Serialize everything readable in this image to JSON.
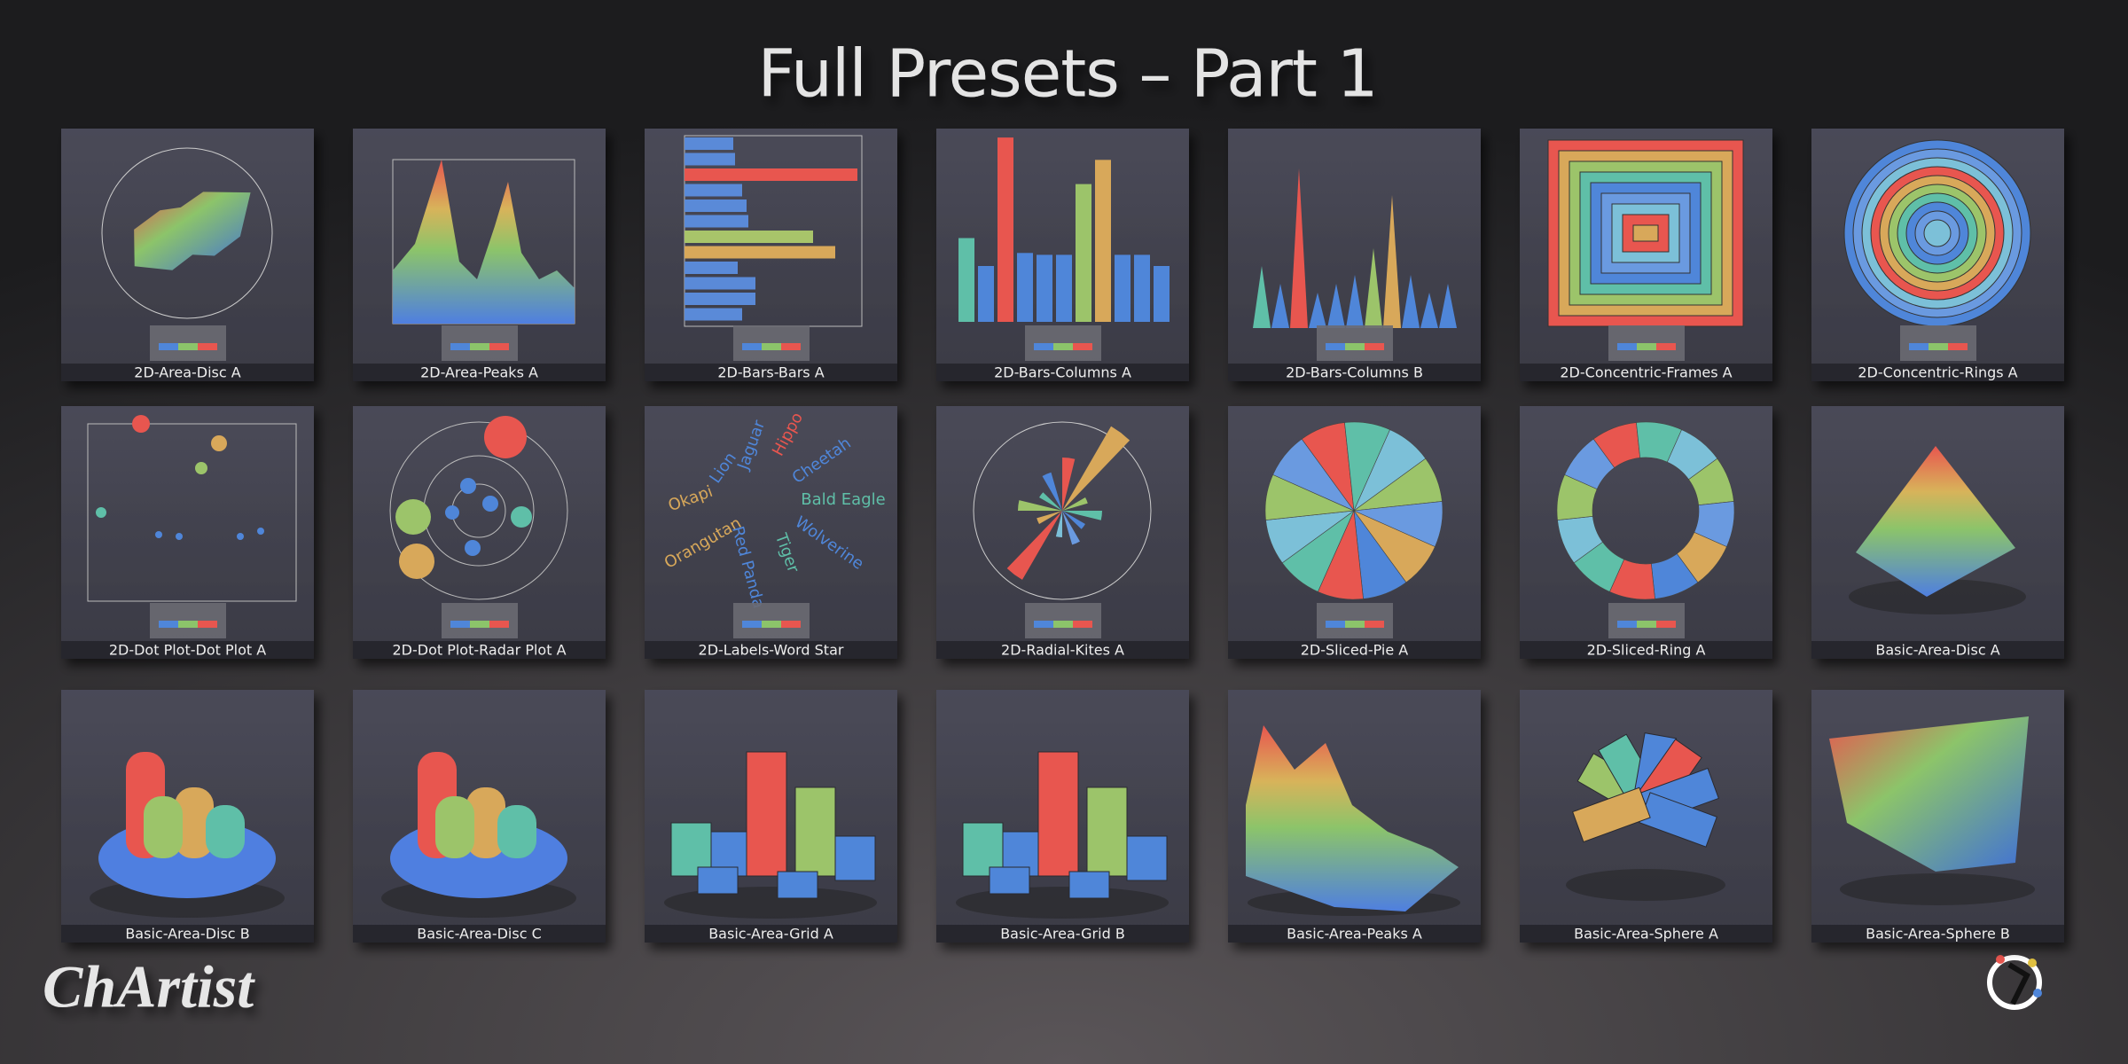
{
  "title": "Full Presets – Part 1",
  "brand": "ChArtist",
  "tiles": [
    {
      "label": "2D-Area-Disc A"
    },
    {
      "label": "2D-Area-Peaks A"
    },
    {
      "label": "2D-Bars-Bars A"
    },
    {
      "label": "2D-Bars-Columns A"
    },
    {
      "label": "2D-Bars-Columns B"
    },
    {
      "label": "2D-Concentric-Frames A"
    },
    {
      "label": "2D-Concentric-Rings A"
    },
    {
      "label": "2D-Dot Plot-Dot Plot A"
    },
    {
      "label": "2D-Dot Plot-Radar Plot A"
    },
    {
      "label": "2D-Labels-Word Star",
      "words": [
        "Hippo",
        "Jaguar",
        "Cheetah",
        "Lion",
        "Okapi",
        "Bald Eagle",
        "Orangutan",
        "Wolverine",
        "Red Panda",
        "Tiger"
      ]
    },
    {
      "label": "2D-Radial-Kites A"
    },
    {
      "label": "2D-Sliced-Pie A"
    },
    {
      "label": "2D-Sliced-Ring A"
    },
    {
      "label": "Basic-Area-Disc A"
    },
    {
      "label": "Basic-Area-Disc B"
    },
    {
      "label": "Basic-Area-Disc C"
    },
    {
      "label": "Basic-Area-Grid A"
    },
    {
      "label": "Basic-Area-Grid B"
    },
    {
      "label": "Basic-Area-Peaks A"
    },
    {
      "label": "Basic-Area-Sphere A"
    },
    {
      "label": "Basic-Area-Sphere B"
    }
  ]
}
